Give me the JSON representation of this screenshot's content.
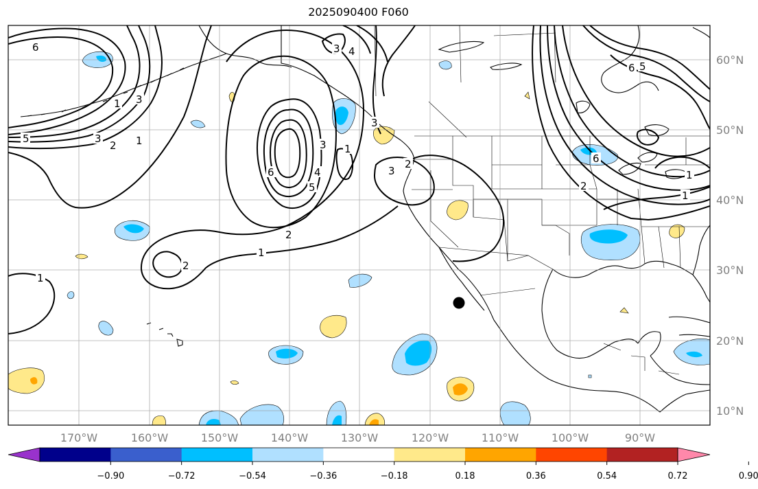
{
  "title": "2025090400 F060",
  "lon_labels": [
    "170°W",
    "160°W",
    "150°W",
    "140°W",
    "130°W",
    "120°W",
    "110°W",
    "100°W",
    "90°W"
  ],
  "lat_labels": [
    "60°N",
    "50°N",
    "40°N",
    "30°N",
    "20°N",
    "10°N"
  ],
  "colorbar": {
    "ticks": [
      "−0.90",
      "−0.72",
      "−0.54",
      "−0.36",
      "−0.18",
      "0.18",
      "0.36",
      "0.54",
      "0.72",
      "0.90"
    ],
    "colors": [
      "#9932cc",
      "#00008b",
      "#3a5fcd",
      "#00bfff",
      "#b0e0ff",
      "#ffffff",
      "#ffe98a",
      "#ffa500",
      "#ff4500",
      "#b22222",
      "#ff88aa"
    ]
  },
  "contour_labels": [
    "6",
    "5",
    "3",
    "2",
    "1",
    "1",
    "3",
    "4",
    "3",
    "3",
    "6",
    "5",
    "4",
    "3",
    "2",
    "1",
    "2",
    "1",
    "3",
    "2",
    "1",
    "6",
    "5",
    "6",
    "2",
    "1",
    "1"
  ],
  "colors": {
    "negative_fill": "#b0e0ff",
    "negative_core": "#00bfff",
    "positive_fill": "#ffe98a",
    "positive_core": "#ffa500",
    "marker": "#000000"
  }
}
